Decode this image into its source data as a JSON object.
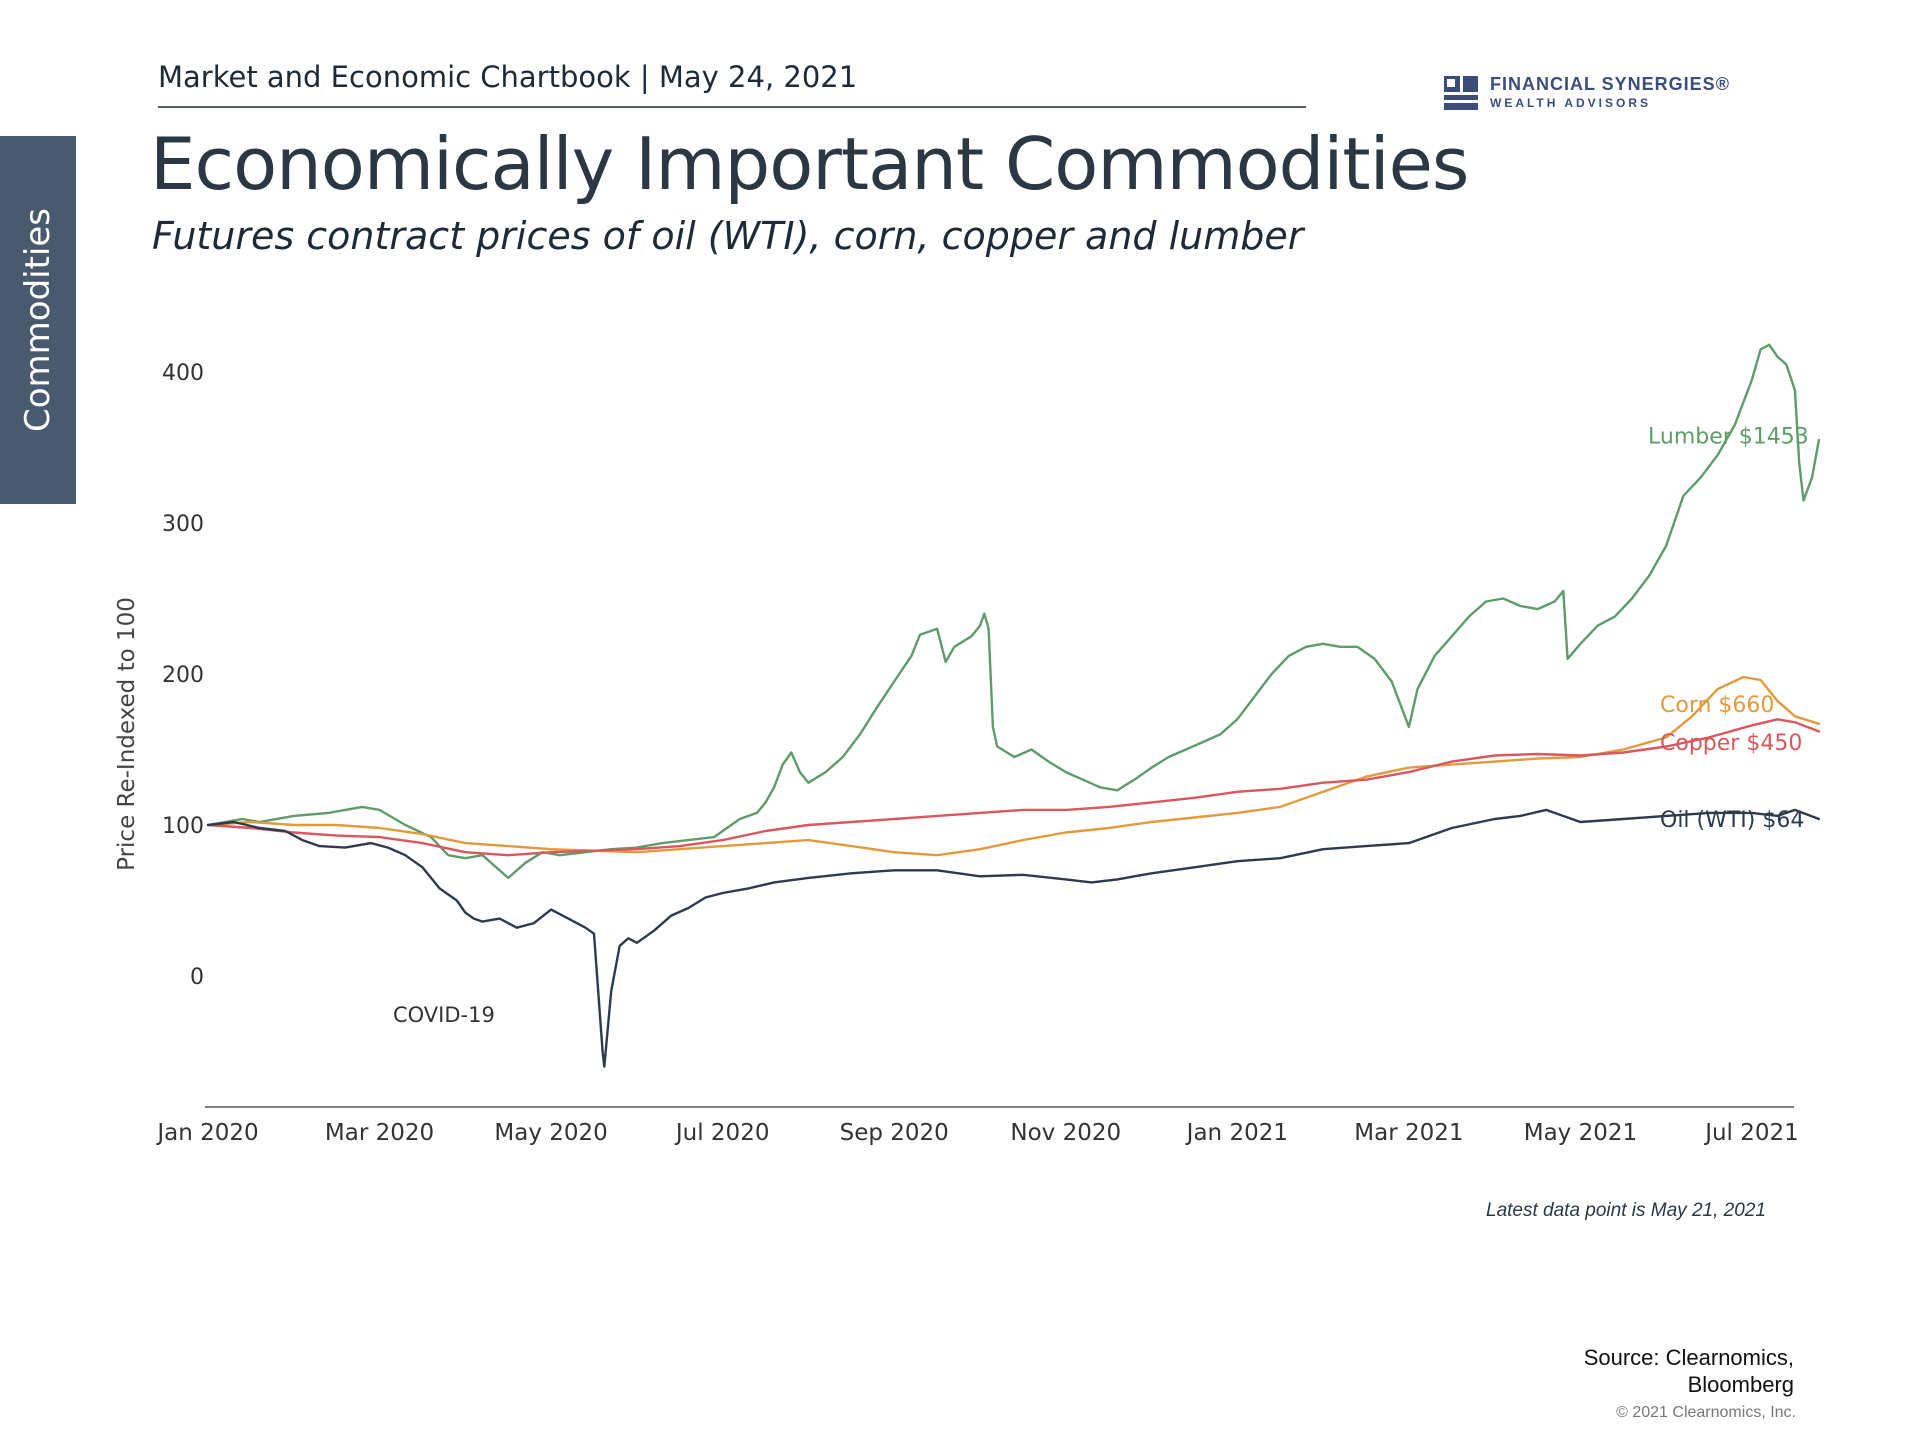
{
  "side_tab": {
    "label": "Commodities"
  },
  "header": {
    "chartbook": "Market and Economic Chartbook | May 24, 2021",
    "logo_brand": "FINANCIAL SYNERGIES®",
    "logo_sub": "WEALTH ADVISORS"
  },
  "title": "Economically Important Commodities",
  "subtitle": "Futures contract prices of oil (WTI), corn, copper and lumber",
  "note": "Latest data point is May 21, 2021",
  "source": {
    "line1": "Source: Clearnomics,",
    "line2": "Bloomberg"
  },
  "copyright": "© 2021 Clearnomics, Inc.",
  "colors": {
    "lumber": "#5e9c6a",
    "corn": "#e29a3f",
    "copper": "#d9575e",
    "oil": "#2e3b4e",
    "axis": "#555555",
    "side_tab": "#4a5a6e",
    "logo": "#3b4d7a"
  },
  "chart_data": {
    "type": "line",
    "ylabel": "Price Re-Indexed to 100",
    "ylim": [
      -85,
      420
    ],
    "yticks": [
      0,
      100,
      200,
      300,
      400
    ],
    "xlim": [
      0,
      18
    ],
    "xaxis_unit": "months since Jan 2020",
    "xticks": [
      {
        "x": 0,
        "label": "Jan 2020"
      },
      {
        "x": 2,
        "label": "Mar 2020"
      },
      {
        "x": 4,
        "label": "May 2020"
      },
      {
        "x": 6,
        "label": "Jul 2020"
      },
      {
        "x": 8,
        "label": "Sep 2020"
      },
      {
        "x": 10,
        "label": "Nov 2020"
      },
      {
        "x": 12,
        "label": "Jan 2021"
      },
      {
        "x": 14,
        "label": "Mar 2021"
      },
      {
        "x": 16,
        "label": "May 2021"
      },
      {
        "x": 18,
        "label": "Jul 2021"
      }
    ],
    "annotations": [
      {
        "text": "COVID-19",
        "x": 2.75,
        "y": -25
      }
    ],
    "series": [
      {
        "name": "Lumber $1453",
        "key": "lumber",
        "points": [
          [
            0,
            100
          ],
          [
            0.4,
            104
          ],
          [
            0.6,
            102
          ],
          [
            1.0,
            106
          ],
          [
            1.4,
            108
          ],
          [
            1.8,
            112
          ],
          [
            2.0,
            110
          ],
          [
            2.3,
            100
          ],
          [
            2.6,
            92
          ],
          [
            2.8,
            80
          ],
          [
            3.0,
            78
          ],
          [
            3.2,
            80
          ],
          [
            3.4,
            70
          ],
          [
            3.5,
            65
          ],
          [
            3.7,
            75
          ],
          [
            3.9,
            82
          ],
          [
            4.1,
            80
          ],
          [
            4.4,
            82
          ],
          [
            4.7,
            84
          ],
          [
            5.0,
            85
          ],
          [
            5.3,
            88
          ],
          [
            5.6,
            90
          ],
          [
            5.9,
            92
          ],
          [
            6.0,
            96
          ],
          [
            6.2,
            104
          ],
          [
            6.4,
            108
          ],
          [
            6.5,
            115
          ],
          [
            6.6,
            125
          ],
          [
            6.7,
            140
          ],
          [
            6.8,
            148
          ],
          [
            6.9,
            135
          ],
          [
            7.0,
            128
          ],
          [
            7.2,
            135
          ],
          [
            7.4,
            145
          ],
          [
            7.6,
            160
          ],
          [
            7.8,
            178
          ],
          [
            8.0,
            195
          ],
          [
            8.2,
            212
          ],
          [
            8.3,
            226
          ],
          [
            8.5,
            230
          ],
          [
            8.6,
            208
          ],
          [
            8.7,
            218
          ],
          [
            8.9,
            225
          ],
          [
            9.0,
            232
          ],
          [
            9.05,
            240
          ],
          [
            9.1,
            230
          ],
          [
            9.15,
            165
          ],
          [
            9.2,
            152
          ],
          [
            9.4,
            145
          ],
          [
            9.6,
            150
          ],
          [
            9.8,
            142
          ],
          [
            10.0,
            135
          ],
          [
            10.2,
            130
          ],
          [
            10.4,
            125
          ],
          [
            10.6,
            123
          ],
          [
            10.8,
            130
          ],
          [
            11.0,
            138
          ],
          [
            11.2,
            145
          ],
          [
            11.4,
            150
          ],
          [
            11.6,
            155
          ],
          [
            11.8,
            160
          ],
          [
            12.0,
            170
          ],
          [
            12.2,
            185
          ],
          [
            12.4,
            200
          ],
          [
            12.6,
            212
          ],
          [
            12.8,
            218
          ],
          [
            13.0,
            220
          ],
          [
            13.2,
            218
          ],
          [
            13.4,
            218
          ],
          [
            13.6,
            210
          ],
          [
            13.8,
            195
          ],
          [
            14.0,
            165
          ],
          [
            14.1,
            190
          ],
          [
            14.3,
            212
          ],
          [
            14.5,
            225
          ],
          [
            14.7,
            238
          ],
          [
            14.9,
            248
          ],
          [
            15.1,
            250
          ],
          [
            15.3,
            245
          ],
          [
            15.5,
            243
          ],
          [
            15.7,
            248
          ],
          [
            15.8,
            255
          ],
          [
            15.85,
            210
          ],
          [
            16.0,
            220
          ],
          [
            16.2,
            232
          ],
          [
            16.4,
            238
          ],
          [
            16.6,
            250
          ],
          [
            16.8,
            265
          ],
          [
            17.0,
            285
          ],
          [
            17.2,
            318
          ],
          [
            17.4,
            330
          ],
          [
            17.6,
            345
          ],
          [
            17.8,
            365
          ],
          [
            18.0,
            395
          ],
          [
            18.1,
            415
          ],
          [
            18.2,
            418
          ],
          [
            18.3,
            410
          ],
          [
            18.4,
            405
          ],
          [
            18.5,
            388
          ],
          [
            18.55,
            340
          ],
          [
            18.6,
            315
          ],
          [
            18.7,
            330
          ],
          [
            18.78,
            355
          ]
        ]
      },
      {
        "name": "Corn $660",
        "key": "corn",
        "points": [
          [
            0,
            100
          ],
          [
            0.5,
            102
          ],
          [
            1.0,
            100
          ],
          [
            1.5,
            100
          ],
          [
            2.0,
            98
          ],
          [
            2.5,
            94
          ],
          [
            3.0,
            88
          ],
          [
            3.5,
            86
          ],
          [
            4.0,
            84
          ],
          [
            4.5,
            83
          ],
          [
            5.0,
            82
          ],
          [
            5.5,
            84
          ],
          [
            6.0,
            86
          ],
          [
            6.5,
            88
          ],
          [
            7.0,
            90
          ],
          [
            7.5,
            86
          ],
          [
            8.0,
            82
          ],
          [
            8.5,
            80
          ],
          [
            9.0,
            84
          ],
          [
            9.5,
            90
          ],
          [
            10.0,
            95
          ],
          [
            10.5,
            98
          ],
          [
            11.0,
            102
          ],
          [
            11.5,
            105
          ],
          [
            12.0,
            108
          ],
          [
            12.5,
            112
          ],
          [
            13.0,
            122
          ],
          [
            13.5,
            132
          ],
          [
            14.0,
            138
          ],
          [
            14.5,
            140
          ],
          [
            15.0,
            142
          ],
          [
            15.5,
            144
          ],
          [
            16.0,
            145
          ],
          [
            16.5,
            150
          ],
          [
            17.0,
            158
          ],
          [
            17.3,
            172
          ],
          [
            17.6,
            190
          ],
          [
            17.9,
            198
          ],
          [
            18.1,
            196
          ],
          [
            18.3,
            182
          ],
          [
            18.5,
            172
          ],
          [
            18.78,
            167
          ]
        ]
      },
      {
        "name": "Copper $450",
        "key": "copper",
        "points": [
          [
            0,
            100
          ],
          [
            0.5,
            98
          ],
          [
            1.0,
            95
          ],
          [
            1.5,
            93
          ],
          [
            2.0,
            92
          ],
          [
            2.5,
            88
          ],
          [
            3.0,
            82
          ],
          [
            3.5,
            80
          ],
          [
            4.0,
            82
          ],
          [
            4.5,
            83
          ],
          [
            5.0,
            84
          ],
          [
            5.5,
            86
          ],
          [
            6.0,
            90
          ],
          [
            6.5,
            96
          ],
          [
            7.0,
            100
          ],
          [
            7.5,
            102
          ],
          [
            8.0,
            104
          ],
          [
            8.5,
            106
          ],
          [
            9.0,
            108
          ],
          [
            9.5,
            110
          ],
          [
            10.0,
            110
          ],
          [
            10.5,
            112
          ],
          [
            11.0,
            115
          ],
          [
            11.5,
            118
          ],
          [
            12.0,
            122
          ],
          [
            12.5,
            124
          ],
          [
            13.0,
            128
          ],
          [
            13.5,
            130
          ],
          [
            14.0,
            135
          ],
          [
            14.5,
            142
          ],
          [
            15.0,
            146
          ],
          [
            15.5,
            147
          ],
          [
            16.0,
            146
          ],
          [
            16.5,
            148
          ],
          [
            17.0,
            152
          ],
          [
            17.5,
            158
          ],
          [
            18.0,
            166
          ],
          [
            18.3,
            170
          ],
          [
            18.5,
            168
          ],
          [
            18.78,
            162
          ]
        ]
      },
      {
        "name": "Oil (WTI) $64",
        "key": "oil",
        "points": [
          [
            0,
            100
          ],
          [
            0.3,
            102
          ],
          [
            0.6,
            98
          ],
          [
            0.9,
            96
          ],
          [
            1.1,
            90
          ],
          [
            1.3,
            86
          ],
          [
            1.6,
            85
          ],
          [
            1.9,
            88
          ],
          [
            2.1,
            85
          ],
          [
            2.3,
            80
          ],
          [
            2.5,
            72
          ],
          [
            2.7,
            58
          ],
          [
            2.9,
            50
          ],
          [
            3.0,
            42
          ],
          [
            3.1,
            38
          ],
          [
            3.2,
            36
          ],
          [
            3.4,
            38
          ],
          [
            3.6,
            32
          ],
          [
            3.8,
            35
          ],
          [
            4.0,
            44
          ],
          [
            4.2,
            38
          ],
          [
            4.4,
            32
          ],
          [
            4.5,
            28
          ],
          [
            4.6,
            -50
          ],
          [
            4.62,
            -60
          ],
          [
            4.7,
            -10
          ],
          [
            4.8,
            20
          ],
          [
            4.9,
            25
          ],
          [
            5.0,
            22
          ],
          [
            5.2,
            30
          ],
          [
            5.4,
            40
          ],
          [
            5.6,
            45
          ],
          [
            5.8,
            52
          ],
          [
            6.0,
            55
          ],
          [
            6.3,
            58
          ],
          [
            6.6,
            62
          ],
          [
            7.0,
            65
          ],
          [
            7.5,
            68
          ],
          [
            8.0,
            70
          ],
          [
            8.5,
            70
          ],
          [
            9.0,
            66
          ],
          [
            9.5,
            67
          ],
          [
            10.0,
            64
          ],
          [
            10.3,
            62
          ],
          [
            10.6,
            64
          ],
          [
            11.0,
            68
          ],
          [
            11.5,
            72
          ],
          [
            12.0,
            76
          ],
          [
            12.5,
            78
          ],
          [
            13.0,
            84
          ],
          [
            13.5,
            86
          ],
          [
            14.0,
            88
          ],
          [
            14.5,
            98
          ],
          [
            15.0,
            104
          ],
          [
            15.3,
            106
          ],
          [
            15.6,
            110
          ],
          [
            16.0,
            102
          ],
          [
            16.5,
            104
          ],
          [
            17.0,
            106
          ],
          [
            17.5,
            108
          ],
          [
            18.0,
            108
          ],
          [
            18.3,
            106
          ],
          [
            18.5,
            110
          ],
          [
            18.78,
            104
          ]
        ]
      }
    ],
    "end_labels": [
      {
        "key": "lumber",
        "y": 358
      },
      {
        "key": "corn",
        "y": 180
      },
      {
        "key": "copper",
        "y": 155
      },
      {
        "key": "oil",
        "y": 104
      }
    ]
  }
}
